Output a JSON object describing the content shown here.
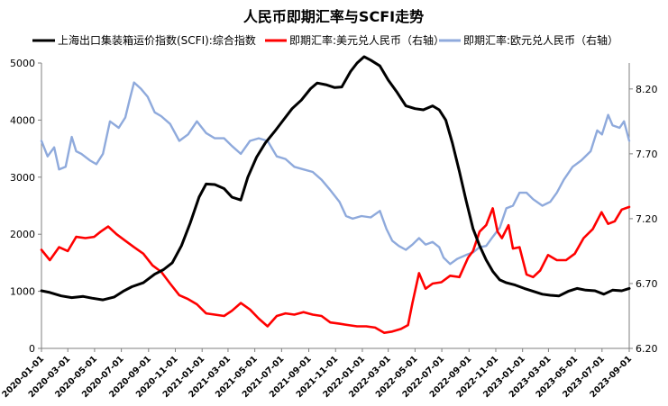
{
  "chart_data": {
    "type": "line",
    "title": "人民币即期汇率与SCFI走势",
    "legend_position": "top",
    "grid": false,
    "y_left": {
      "range": [
        0,
        5000
      ],
      "ticks": [
        0,
        1000,
        2000,
        3000,
        4000,
        5000
      ]
    },
    "y_right": {
      "range": [
        6.2,
        8.4
      ],
      "ticks": [
        "6.20",
        "6.70",
        "7.20",
        "7.70",
        "8.20"
      ]
    },
    "x_range": [
      "2020-01-01",
      "2023-09-01"
    ],
    "x_ticks": [
      "2020-01-01",
      "2020-03-01",
      "2020-05-01",
      "2020-07-01",
      "2020-09-01",
      "2020-11-01",
      "2021-01-01",
      "2021-03-01",
      "2021-05-01",
      "2021-07-01",
      "2021-09-01",
      "2021-11-01",
      "2022-01-01",
      "2022-03-01",
      "2022-05-01",
      "2022-07-01",
      "2022-09-01",
      "2022-11-01",
      "2023-01-01",
      "2023-03-01",
      "2023-05-01",
      "2023-07-01",
      "2023-09-01"
    ],
    "series": [
      {
        "name": "上海出口集装箱运价指数(SCFI):综合指数",
        "axis": "left",
        "color": "#000000",
        "points": [
          [
            "2020-01-01",
            1010
          ],
          [
            "2020-01-20",
            980
          ],
          [
            "2020-02-15",
            920
          ],
          [
            "2020-03-10",
            890
          ],
          [
            "2020-04-05",
            910
          ],
          [
            "2020-04-25",
            880
          ],
          [
            "2020-05-20",
            850
          ],
          [
            "2020-06-15",
            900
          ],
          [
            "2020-07-05",
            1000
          ],
          [
            "2020-07-25",
            1080
          ],
          [
            "2020-08-20",
            1150
          ],
          [
            "2020-09-15",
            1300
          ],
          [
            "2020-10-05",
            1380
          ],
          [
            "2020-10-25",
            1500
          ],
          [
            "2020-11-15",
            1800
          ],
          [
            "2020-12-05",
            2200
          ],
          [
            "2020-12-25",
            2650
          ],
          [
            "2021-01-10",
            2880
          ],
          [
            "2021-01-30",
            2870
          ],
          [
            "2021-02-20",
            2800
          ],
          [
            "2021-03-10",
            2650
          ],
          [
            "2021-03-30",
            2600
          ],
          [
            "2021-04-15",
            3000
          ],
          [
            "2021-05-05",
            3350
          ],
          [
            "2021-05-25",
            3600
          ],
          [
            "2021-06-15",
            3800
          ],
          [
            "2021-07-05",
            4000
          ],
          [
            "2021-07-25",
            4200
          ],
          [
            "2021-08-15",
            4350
          ],
          [
            "2021-09-05",
            4550
          ],
          [
            "2021-09-20",
            4650
          ],
          [
            "2021-10-10",
            4620
          ],
          [
            "2021-10-30",
            4570
          ],
          [
            "2021-11-15",
            4580
          ],
          [
            "2021-12-05",
            4850
          ],
          [
            "2021-12-20",
            5000
          ],
          [
            "2022-01-05",
            5110
          ],
          [
            "2022-01-20",
            5050
          ],
          [
            "2022-02-10",
            4950
          ],
          [
            "2022-03-01",
            4700
          ],
          [
            "2022-03-20",
            4500
          ],
          [
            "2022-04-10",
            4250
          ],
          [
            "2022-05-01",
            4200
          ],
          [
            "2022-05-20",
            4180
          ],
          [
            "2022-06-10",
            4250
          ],
          [
            "2022-06-25",
            4180
          ],
          [
            "2022-07-10",
            4000
          ],
          [
            "2022-07-25",
            3600
          ],
          [
            "2022-08-10",
            3100
          ],
          [
            "2022-08-25",
            2600
          ],
          [
            "2022-09-10",
            2100
          ],
          [
            "2022-09-25",
            1800
          ],
          [
            "2022-10-10",
            1550
          ],
          [
            "2022-10-25",
            1350
          ],
          [
            "2022-11-10",
            1200
          ],
          [
            "2022-11-25",
            1150
          ],
          [
            "2022-12-15",
            1110
          ],
          [
            "2023-01-05",
            1050
          ],
          [
            "2023-01-25",
            1000
          ],
          [
            "2023-02-15",
            950
          ],
          [
            "2023-03-05",
            930
          ],
          [
            "2023-03-25",
            920
          ],
          [
            "2023-04-15",
            1000
          ],
          [
            "2023-05-05",
            1050
          ],
          [
            "2023-05-25",
            1020
          ],
          [
            "2023-06-15",
            1010
          ],
          [
            "2023-07-05",
            950
          ],
          [
            "2023-07-25",
            1020
          ],
          [
            "2023-08-15",
            1010
          ],
          [
            "2023-09-01",
            1050
          ]
        ]
      },
      {
        "name": "即期汇率:美元兑人民币（右轴）",
        "axis": "right",
        "color": "#ff0000",
        "points": [
          [
            "2020-01-01",
            6.96
          ],
          [
            "2020-01-20",
            6.88
          ],
          [
            "2020-02-10",
            6.98
          ],
          [
            "2020-03-01",
            6.95
          ],
          [
            "2020-03-20",
            7.06
          ],
          [
            "2020-04-10",
            7.05
          ],
          [
            "2020-04-30",
            7.06
          ],
          [
            "2020-05-15",
            7.1
          ],
          [
            "2020-06-01",
            7.14
          ],
          [
            "2020-06-20",
            7.08
          ],
          [
            "2020-07-10",
            7.03
          ],
          [
            "2020-07-30",
            6.98
          ],
          [
            "2020-08-20",
            6.93
          ],
          [
            "2020-09-10",
            6.84
          ],
          [
            "2020-09-30",
            6.79
          ],
          [
            "2020-10-20",
            6.7
          ],
          [
            "2020-11-10",
            6.61
          ],
          [
            "2020-11-30",
            6.58
          ],
          [
            "2020-12-20",
            6.54
          ],
          [
            "2021-01-10",
            6.47
          ],
          [
            "2021-01-30",
            6.46
          ],
          [
            "2021-02-20",
            6.45
          ],
          [
            "2021-03-10",
            6.49
          ],
          [
            "2021-03-30",
            6.55
          ],
          [
            "2021-04-20",
            6.5
          ],
          [
            "2021-05-10",
            6.43
          ],
          [
            "2021-05-30",
            6.37
          ],
          [
            "2021-06-20",
            6.45
          ],
          [
            "2021-07-10",
            6.47
          ],
          [
            "2021-07-30",
            6.46
          ],
          [
            "2021-08-20",
            6.48
          ],
          [
            "2021-09-10",
            6.46
          ],
          [
            "2021-09-30",
            6.45
          ],
          [
            "2021-10-20",
            6.4
          ],
          [
            "2021-11-10",
            6.39
          ],
          [
            "2021-11-30",
            6.38
          ],
          [
            "2021-12-20",
            6.37
          ],
          [
            "2022-01-10",
            6.37
          ],
          [
            "2022-01-30",
            6.36
          ],
          [
            "2022-02-20",
            6.32
          ],
          [
            "2022-03-10",
            6.33
          ],
          [
            "2022-03-30",
            6.35
          ],
          [
            "2022-04-15",
            6.38
          ],
          [
            "2022-04-25",
            6.55
          ],
          [
            "2022-05-10",
            6.78
          ],
          [
            "2022-05-25",
            6.66
          ],
          [
            "2022-06-10",
            6.7
          ],
          [
            "2022-06-30",
            6.71
          ],
          [
            "2022-07-20",
            6.76
          ],
          [
            "2022-08-10",
            6.75
          ],
          [
            "2022-08-30",
            6.9
          ],
          [
            "2022-09-10",
            6.95
          ],
          [
            "2022-09-25",
            7.1
          ],
          [
            "2022-10-10",
            7.15
          ],
          [
            "2022-10-25",
            7.28
          ],
          [
            "2022-11-05",
            7.1
          ],
          [
            "2022-11-15",
            7.05
          ],
          [
            "2022-11-30",
            7.15
          ],
          [
            "2022-12-10",
            6.97
          ],
          [
            "2022-12-25",
            6.98
          ],
          [
            "2023-01-10",
            6.77
          ],
          [
            "2023-01-25",
            6.75
          ],
          [
            "2023-02-10",
            6.8
          ],
          [
            "2023-02-28",
            6.92
          ],
          [
            "2023-03-20",
            6.88
          ],
          [
            "2023-04-10",
            6.88
          ],
          [
            "2023-04-30",
            6.93
          ],
          [
            "2023-05-20",
            7.05
          ],
          [
            "2023-06-10",
            7.12
          ],
          [
            "2023-06-30",
            7.25
          ],
          [
            "2023-07-15",
            7.16
          ],
          [
            "2023-07-30",
            7.18
          ],
          [
            "2023-08-15",
            7.27
          ],
          [
            "2023-09-01",
            7.29
          ]
        ]
      },
      {
        "name": "即期汇率:欧元兑人民币（右轴）",
        "axis": "right",
        "color": "#8faadc",
        "points": [
          [
            "2020-01-01",
            7.8
          ],
          [
            "2020-01-15",
            7.68
          ],
          [
            "2020-01-30",
            7.75
          ],
          [
            "2020-02-10",
            7.58
          ],
          [
            "2020-02-25",
            7.6
          ],
          [
            "2020-03-10",
            7.83
          ],
          [
            "2020-03-20",
            7.72
          ],
          [
            "2020-04-01",
            7.7
          ],
          [
            "2020-04-20",
            7.65
          ],
          [
            "2020-05-05",
            7.62
          ],
          [
            "2020-05-20",
            7.7
          ],
          [
            "2020-06-05",
            7.95
          ],
          [
            "2020-06-25",
            7.9
          ],
          [
            "2020-07-10",
            7.98
          ],
          [
            "2020-07-20",
            8.12
          ],
          [
            "2020-07-30",
            8.25
          ],
          [
            "2020-08-15",
            8.2
          ],
          [
            "2020-08-30",
            8.14
          ],
          [
            "2020-09-15",
            8.02
          ],
          [
            "2020-09-30",
            7.99
          ],
          [
            "2020-10-20",
            7.93
          ],
          [
            "2020-11-10",
            7.8
          ],
          [
            "2020-11-30",
            7.85
          ],
          [
            "2020-12-20",
            7.95
          ],
          [
            "2021-01-10",
            7.86
          ],
          [
            "2021-01-30",
            7.82
          ],
          [
            "2021-02-20",
            7.82
          ],
          [
            "2021-03-10",
            7.76
          ],
          [
            "2021-03-30",
            7.7
          ],
          [
            "2021-04-20",
            7.8
          ],
          [
            "2021-05-10",
            7.82
          ],
          [
            "2021-05-30",
            7.8
          ],
          [
            "2021-06-20",
            7.68
          ],
          [
            "2021-07-10",
            7.66
          ],
          [
            "2021-07-30",
            7.6
          ],
          [
            "2021-08-20",
            7.58
          ],
          [
            "2021-09-10",
            7.56
          ],
          [
            "2021-09-30",
            7.5
          ],
          [
            "2021-10-20",
            7.42
          ],
          [
            "2021-11-10",
            7.33
          ],
          [
            "2021-11-25",
            7.22
          ],
          [
            "2021-12-10",
            7.2
          ],
          [
            "2021-12-30",
            7.22
          ],
          [
            "2022-01-20",
            7.21
          ],
          [
            "2022-02-10",
            7.26
          ],
          [
            "2022-02-25",
            7.12
          ],
          [
            "2022-03-10",
            7.03
          ],
          [
            "2022-03-25",
            6.99
          ],
          [
            "2022-04-10",
            6.96
          ],
          [
            "2022-04-25",
            7.0
          ],
          [
            "2022-05-10",
            7.05
          ],
          [
            "2022-05-25",
            7.0
          ],
          [
            "2022-06-10",
            7.02
          ],
          [
            "2022-06-25",
            6.98
          ],
          [
            "2022-07-05",
            6.9
          ],
          [
            "2022-07-20",
            6.85
          ],
          [
            "2022-08-05",
            6.89
          ],
          [
            "2022-08-25",
            6.92
          ],
          [
            "2022-09-10",
            6.94
          ],
          [
            "2022-09-25",
            6.98
          ],
          [
            "2022-10-10",
            6.99
          ],
          [
            "2022-10-25",
            7.06
          ],
          [
            "2022-11-10",
            7.13
          ],
          [
            "2022-11-25",
            7.28
          ],
          [
            "2022-12-10",
            7.3
          ],
          [
            "2022-12-25",
            7.4
          ],
          [
            "2023-01-10",
            7.4
          ],
          [
            "2023-01-25",
            7.35
          ],
          [
            "2023-02-15",
            7.3
          ],
          [
            "2023-03-05",
            7.33
          ],
          [
            "2023-03-20",
            7.4
          ],
          [
            "2023-04-05",
            7.5
          ],
          [
            "2023-04-25",
            7.6
          ],
          [
            "2023-05-15",
            7.65
          ],
          [
            "2023-06-05",
            7.72
          ],
          [
            "2023-06-20",
            7.88
          ],
          [
            "2023-07-01",
            7.85
          ],
          [
            "2023-07-15",
            8.0
          ],
          [
            "2023-07-25",
            7.92
          ],
          [
            "2023-08-10",
            7.9
          ],
          [
            "2023-08-20",
            7.95
          ],
          [
            "2023-09-01",
            7.8
          ]
        ]
      }
    ]
  }
}
